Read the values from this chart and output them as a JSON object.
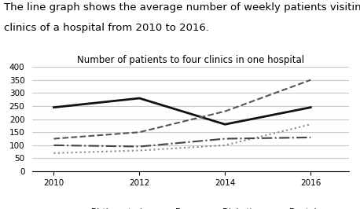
{
  "title": "Number of patients to four clinics in one hospital",
  "suptitle_line1": "The line graph shows the average number of weekly patients visiting four",
  "suptitle_line2": "clinics of a hospital from 2010 to 2016.",
  "years": [
    2010,
    2012,
    2014,
    2016
  ],
  "series": {
    "Birth control": [
      245,
      280,
      180,
      245
    ],
    "Eye": [
      125,
      150,
      230,
      350
    ],
    "Diabetic": [
      70,
      80,
      100,
      180
    ],
    "Dental": [
      100,
      95,
      125,
      130
    ]
  },
  "line_styles": {
    "Birth control": {
      "color": "#111111",
      "linestyle": "-",
      "linewidth": 2.0
    },
    "Eye": {
      "color": "#555555",
      "linestyle": "--",
      "linewidth": 1.5
    },
    "Diabetic": {
      "color": "#888888",
      "linestyle": ":",
      "linewidth": 1.5
    },
    "Dental": {
      "color": "#444444",
      "linestyle": "-.",
      "linewidth": 1.5
    }
  },
  "ylim": [
    0,
    400
  ],
  "yticks": [
    0,
    50,
    100,
    150,
    200,
    250,
    300,
    350,
    400
  ],
  "xticks": [
    2010,
    2012,
    2014,
    2016
  ],
  "background_color": "#ffffff",
  "grid_color": "#c8c8c8",
  "title_fontsize": 8.5,
  "suptitle_fontsize": 9.5,
  "tick_fontsize": 7.5,
  "legend_fontsize": 7.5
}
